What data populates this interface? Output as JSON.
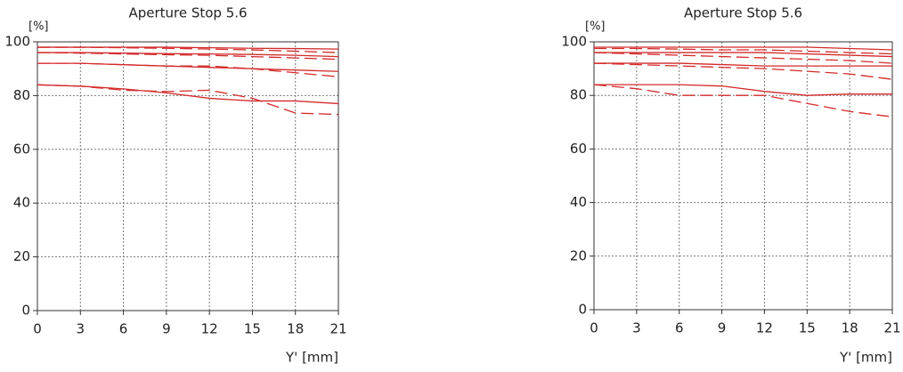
{
  "chart_data": [
    {
      "type": "line",
      "title": "Aperture Stop 5.6",
      "y_label": "[%]",
      "x_label": "Y' [mm]",
      "x": [
        0,
        3,
        6,
        9,
        12,
        15,
        18,
        21
      ],
      "xlim": [
        0,
        21
      ],
      "xticks": [
        0,
        3,
        6,
        9,
        12,
        15,
        18,
        21
      ],
      "ylim": [
        0,
        100
      ],
      "yticks": [
        0,
        20,
        40,
        60,
        80,
        100
      ],
      "grid": true,
      "series": [
        {
          "color": "#d42a2a",
          "dash": false,
          "values": [
            98,
            98,
            98,
            98,
            97.8,
            97.6,
            97.5,
            97.3
          ]
        },
        {
          "color": "#d42a2a",
          "dash": true,
          "values": [
            98,
            98,
            97.8,
            97.6,
            97.3,
            97,
            96.5,
            96
          ]
        },
        {
          "color": "#d42a2a",
          "dash": false,
          "values": [
            96,
            96,
            95.8,
            95.6,
            95.5,
            95.3,
            95,
            94.5
          ]
        },
        {
          "color": "#d42a2a",
          "dash": true,
          "values": [
            96,
            95.8,
            95.5,
            95.2,
            95,
            94.5,
            94,
            93.5
          ]
        },
        {
          "color": "#d42a2a",
          "dash": false,
          "values": [
            92,
            92,
            91.5,
            91,
            90.5,
            90,
            89.5,
            89
          ]
        },
        {
          "color": "#d42a2a",
          "dash": true,
          "values": [
            92,
            92,
            91.5,
            91,
            91,
            90,
            88.5,
            87
          ]
        },
        {
          "color": "#d42a2a",
          "dash": false,
          "values": [
            84,
            83.5,
            82.5,
            81,
            79,
            78,
            78,
            77
          ]
        },
        {
          "color": "#d42a2a",
          "dash": true,
          "values": [
            84,
            83.5,
            82,
            81.5,
            82,
            79,
            73.5,
            73
          ]
        }
      ]
    },
    {
      "type": "line",
      "title": "Aperture Stop 5.6",
      "y_label": "[%]",
      "x_label": "Y' [mm]",
      "x": [
        0,
        3,
        6,
        9,
        12,
        15,
        18,
        21
      ],
      "xlim": [
        0,
        21
      ],
      "xticks": [
        0,
        3,
        6,
        9,
        12,
        15,
        18,
        21
      ],
      "ylim": [
        0,
        100
      ],
      "yticks": [
        0,
        20,
        40,
        60,
        80,
        100
      ],
      "grid": true,
      "series": [
        {
          "color": "#d42a2a",
          "dash": false,
          "values": [
            98,
            98,
            98,
            98,
            98,
            98,
            97.5,
            97
          ]
        },
        {
          "color": "#d42a2a",
          "dash": true,
          "values": [
            97.5,
            97.5,
            97.3,
            97,
            97,
            96.5,
            96,
            95.5
          ]
        },
        {
          "color": "#d42a2a",
          "dash": false,
          "values": [
            96,
            96,
            96,
            96,
            96,
            95.5,
            95,
            94.5
          ]
        },
        {
          "color": "#d42a2a",
          "dash": true,
          "values": [
            96,
            95.5,
            95,
            94.5,
            94,
            93.5,
            93,
            92
          ]
        },
        {
          "color": "#d42a2a",
          "dash": false,
          "values": [
            92,
            92,
            92,
            91.5,
            91,
            91,
            91,
            91
          ]
        },
        {
          "color": "#d42a2a",
          "dash": true,
          "values": [
            92,
            91.5,
            91,
            90.5,
            90,
            89,
            88,
            86
          ]
        },
        {
          "color": "#d42a2a",
          "dash": false,
          "values": [
            84,
            84,
            84,
            83.5,
            81.5,
            80,
            80.5,
            80.5
          ]
        },
        {
          "color": "#d42a2a",
          "dash": true,
          "values": [
            84,
            82.5,
            80,
            80,
            80,
            77,
            74,
            72
          ]
        }
      ]
    }
  ]
}
